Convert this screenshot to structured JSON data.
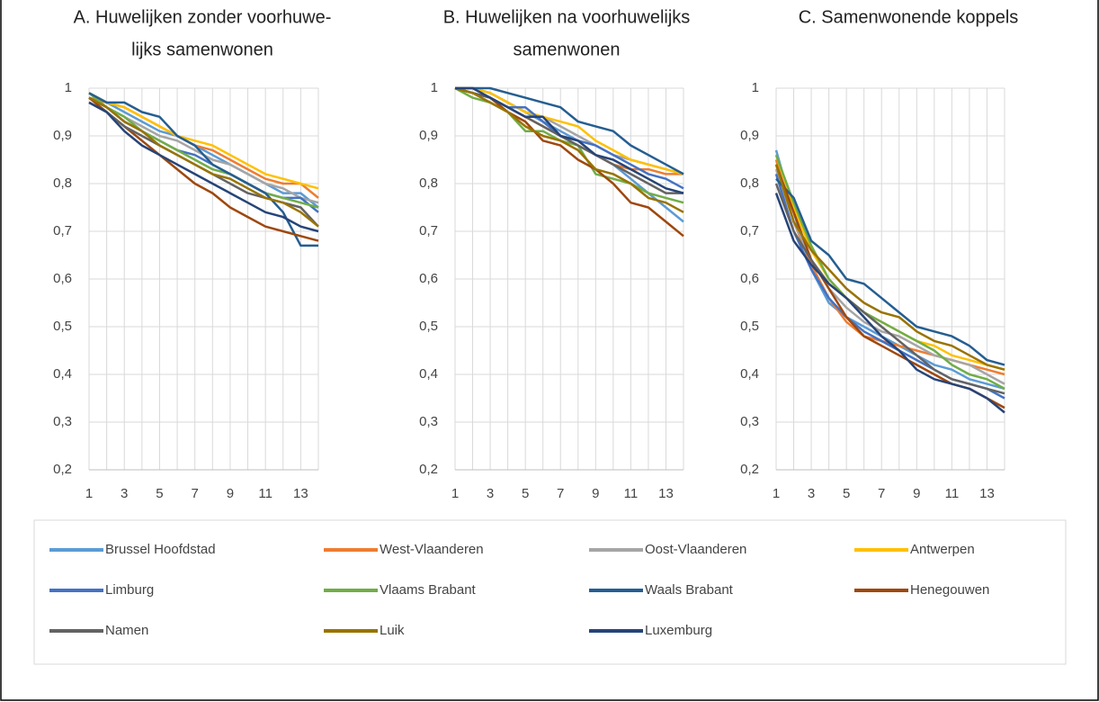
{
  "chart_data": [
    {
      "type": "line",
      "title": [
        "A. Huwelijken zonder voorhuwe-",
        "lijks samenwonen"
      ],
      "x": [
        1,
        2,
        3,
        4,
        5,
        6,
        7,
        8,
        9,
        10,
        11,
        12,
        13,
        14
      ],
      "xlim": [
        1,
        14
      ],
      "xticks": [
        1,
        3,
        5,
        7,
        9,
        11,
        13
      ],
      "ylim": [
        0.2,
        1
      ],
      "yticks": [
        {
          "value": 0.2,
          "label": "0,2"
        },
        {
          "value": 0.3,
          "label": "0,3"
        },
        {
          "value": 0.4,
          "label": "0,4"
        },
        {
          "value": 0.5,
          "label": "0,5"
        },
        {
          "value": 0.6,
          "label": "0,6"
        },
        {
          "value": 0.7,
          "label": "0,7"
        },
        {
          "value": 0.8,
          "label": "0,8"
        },
        {
          "value": 0.9,
          "label": "0,9"
        },
        1
      ],
      "grid": true,
      "series": [
        {
          "name": "Brussel Hoofdstad",
          "color": "#5b9bd5",
          "values": [
            0.99,
            0.97,
            0.95,
            0.93,
            0.91,
            0.9,
            0.88,
            0.86,
            0.84,
            0.82,
            0.8,
            0.78,
            0.78,
            0.75
          ]
        },
        {
          "name": "West-Vlaanderen",
          "color": "#ed7d31",
          "values": [
            0.98,
            0.97,
            0.96,
            0.94,
            0.92,
            0.9,
            0.88,
            0.87,
            0.85,
            0.83,
            0.81,
            0.8,
            0.8,
            0.77
          ]
        },
        {
          "name": "Oost-Vlaanderen",
          "color": "#a5a5a5",
          "values": [
            0.98,
            0.96,
            0.94,
            0.92,
            0.9,
            0.89,
            0.87,
            0.85,
            0.84,
            0.82,
            0.8,
            0.79,
            0.77,
            0.76
          ]
        },
        {
          "name": "Antwerpen",
          "color": "#ffc000",
          "values": [
            0.99,
            0.97,
            0.96,
            0.94,
            0.92,
            0.9,
            0.89,
            0.88,
            0.86,
            0.84,
            0.82,
            0.81,
            0.8,
            0.79
          ]
        },
        {
          "name": "Limburg",
          "color": "#4472c4",
          "values": [
            0.98,
            0.96,
            0.93,
            0.91,
            0.89,
            0.87,
            0.86,
            0.84,
            0.82,
            0.8,
            0.78,
            0.77,
            0.77,
            0.74
          ]
        },
        {
          "name": "Vlaams Brabant",
          "color": "#70ad47",
          "values": [
            0.99,
            0.96,
            0.94,
            0.91,
            0.89,
            0.87,
            0.85,
            0.83,
            0.82,
            0.8,
            0.78,
            0.77,
            0.76,
            0.75
          ]
        },
        {
          "name": "Waals Brabant",
          "color": "#255e91",
          "values": [
            0.99,
            0.97,
            0.97,
            0.95,
            0.94,
            0.9,
            0.88,
            0.84,
            0.82,
            0.8,
            0.78,
            0.74,
            0.67,
            0.67
          ]
        },
        {
          "name": "Henegouwen",
          "color": "#9e480e",
          "values": [
            0.98,
            0.95,
            0.92,
            0.89,
            0.86,
            0.83,
            0.8,
            0.78,
            0.75,
            0.73,
            0.71,
            0.7,
            0.69,
            0.68
          ]
        },
        {
          "name": "Namen",
          "color": "#636363",
          "values": [
            0.97,
            0.95,
            0.92,
            0.9,
            0.88,
            0.86,
            0.84,
            0.82,
            0.8,
            0.78,
            0.77,
            0.76,
            0.75,
            0.71
          ]
        },
        {
          "name": "Luik",
          "color": "#997300",
          "values": [
            0.98,
            0.96,
            0.93,
            0.91,
            0.88,
            0.86,
            0.84,
            0.82,
            0.81,
            0.79,
            0.77,
            0.76,
            0.74,
            0.71
          ]
        },
        {
          "name": "Luxemburg",
          "color": "#264478",
          "values": [
            0.97,
            0.95,
            0.91,
            0.88,
            0.86,
            0.84,
            0.82,
            0.8,
            0.78,
            0.76,
            0.74,
            0.73,
            0.71,
            0.7
          ]
        }
      ]
    },
    {
      "type": "line",
      "title": [
        "B. Huwelijken na voorhuwelijks",
        "samenwonen"
      ],
      "x": [
        1,
        2,
        3,
        4,
        5,
        6,
        7,
        8,
        9,
        10,
        11,
        12,
        13,
        14
      ],
      "xlim": [
        1,
        14
      ],
      "xticks": [
        1,
        3,
        5,
        7,
        9,
        11,
        13
      ],
      "ylim": [
        0.2,
        1
      ],
      "yticks": [
        {
          "value": 0.2,
          "label": "0,2"
        },
        {
          "value": 0.3,
          "label": "0,3"
        },
        {
          "value": 0.4,
          "label": "0,4"
        },
        {
          "value": 0.5,
          "label": "0,5"
        },
        {
          "value": 0.6,
          "label": "0,6"
        },
        {
          "value": 0.7,
          "label": "0,7"
        },
        {
          "value": 0.8,
          "label": "0,8"
        },
        {
          "value": 0.9,
          "label": "0,9"
        },
        1
      ],
      "grid": true,
      "series": [
        {
          "name": "Brussel Hoofdstad",
          "color": "#5b9bd5",
          "values": [
            1,
            1,
            0.99,
            0.97,
            0.95,
            0.93,
            0.91,
            0.89,
            0.86,
            0.84,
            0.81,
            0.78,
            0.75,
            0.72
          ]
        },
        {
          "name": "West-Vlaanderen",
          "color": "#ed7d31",
          "values": [
            1,
            0.99,
            0.98,
            0.96,
            0.94,
            0.92,
            0.9,
            0.88,
            0.86,
            0.84,
            0.83,
            0.83,
            0.82,
            0.82
          ]
        },
        {
          "name": "Oost-Vlaanderen",
          "color": "#a5a5a5",
          "values": [
            1,
            1,
            0.99,
            0.97,
            0.95,
            0.94,
            0.92,
            0.9,
            0.88,
            0.86,
            0.85,
            0.84,
            0.83,
            0.82
          ]
        },
        {
          "name": "Antwerpen",
          "color": "#ffc000",
          "values": [
            1,
            1,
            0.99,
            0.97,
            0.95,
            0.94,
            0.93,
            0.92,
            0.89,
            0.87,
            0.85,
            0.84,
            0.83,
            0.82
          ]
        },
        {
          "name": "Limburg",
          "color": "#4472c4",
          "values": [
            1,
            0.99,
            0.98,
            0.96,
            0.96,
            0.93,
            0.9,
            0.89,
            0.88,
            0.86,
            0.84,
            0.82,
            0.81,
            0.79
          ]
        },
        {
          "name": "Vlaams Brabant",
          "color": "#70ad47",
          "values": [
            1,
            0.98,
            0.97,
            0.95,
            0.91,
            0.91,
            0.89,
            0.88,
            0.82,
            0.81,
            0.8,
            0.78,
            0.77,
            0.76
          ]
        },
        {
          "name": "Waals Brabant",
          "color": "#255e91",
          "values": [
            1,
            1,
            1,
            0.99,
            0.98,
            0.97,
            0.96,
            0.93,
            0.92,
            0.91,
            0.88,
            0.86,
            0.84,
            0.82
          ]
        },
        {
          "name": "Henegouwen",
          "color": "#9e480e",
          "values": [
            1,
            0.99,
            0.98,
            0.95,
            0.93,
            0.89,
            0.88,
            0.85,
            0.83,
            0.8,
            0.76,
            0.75,
            0.72,
            0.69
          ]
        },
        {
          "name": "Namen",
          "color": "#636363",
          "values": [
            1,
            0.99,
            0.98,
            0.96,
            0.94,
            0.92,
            0.9,
            0.88,
            0.86,
            0.84,
            0.82,
            0.8,
            0.78,
            0.78
          ]
        },
        {
          "name": "Luik",
          "color": "#997300",
          "values": [
            1,
            0.99,
            0.97,
            0.95,
            0.92,
            0.9,
            0.89,
            0.87,
            0.83,
            0.82,
            0.8,
            0.77,
            0.76,
            0.74
          ]
        },
        {
          "name": "Luxemburg",
          "color": "#264478",
          "values": [
            1,
            1,
            0.98,
            0.96,
            0.94,
            0.94,
            0.9,
            0.89,
            0.86,
            0.85,
            0.83,
            0.81,
            0.79,
            0.78
          ]
        }
      ]
    },
    {
      "type": "line",
      "title": [
        "C. Samenwonende koppels"
      ],
      "x": [
        1,
        2,
        3,
        4,
        5,
        6,
        7,
        8,
        9,
        10,
        11,
        12,
        13,
        14
      ],
      "xlim": [
        1,
        14
      ],
      "xticks": [
        1,
        3,
        5,
        7,
        9,
        11,
        13
      ],
      "ylim": [
        0.2,
        1
      ],
      "yticks": [
        {
          "value": 0.2,
          "label": "0,2"
        },
        {
          "value": 0.3,
          "label": "0,3"
        },
        {
          "value": 0.4,
          "label": "0,4"
        },
        {
          "value": 0.5,
          "label": "0,5"
        },
        {
          "value": 0.6,
          "label": "0,6"
        },
        {
          "value": 0.7,
          "label": "0,7"
        },
        {
          "value": 0.8,
          "label": "0,8"
        },
        {
          "value": 0.9,
          "label": "0,9"
        },
        1
      ],
      "grid": true,
      "series": [
        {
          "name": "Brussel Hoofdstad",
          "color": "#5b9bd5",
          "values": [
            0.87,
            0.74,
            0.62,
            0.55,
            0.52,
            0.5,
            0.48,
            0.46,
            0.44,
            0.42,
            0.41,
            0.39,
            0.38,
            0.37
          ]
        },
        {
          "name": "West-Vlaanderen",
          "color": "#ed7d31",
          "values": [
            0.85,
            0.72,
            0.63,
            0.56,
            0.51,
            0.48,
            0.47,
            0.46,
            0.45,
            0.44,
            0.43,
            0.42,
            0.41,
            0.4
          ]
        },
        {
          "name": "Oost-Vlaanderen",
          "color": "#a5a5a5",
          "values": [
            0.83,
            0.72,
            0.64,
            0.58,
            0.54,
            0.51,
            0.49,
            0.48,
            0.46,
            0.44,
            0.43,
            0.42,
            0.4,
            0.38
          ]
        },
        {
          "name": "Antwerpen",
          "color": "#ffc000",
          "values": [
            0.86,
            0.75,
            0.66,
            0.6,
            0.56,
            0.53,
            0.51,
            0.49,
            0.47,
            0.46,
            0.44,
            0.43,
            0.42,
            0.41
          ]
        },
        {
          "name": "Limburg",
          "color": "#4472c4",
          "values": [
            0.82,
            0.7,
            0.62,
            0.56,
            0.52,
            0.49,
            0.47,
            0.45,
            0.43,
            0.41,
            0.39,
            0.38,
            0.37,
            0.35
          ]
        },
        {
          "name": "Vlaams Brabant",
          "color": "#70ad47",
          "values": [
            0.86,
            0.76,
            0.67,
            0.6,
            0.56,
            0.53,
            0.51,
            0.49,
            0.47,
            0.45,
            0.42,
            0.4,
            0.39,
            0.37
          ]
        },
        {
          "name": "Waals Brabant",
          "color": "#255e91",
          "values": [
            0.81,
            0.77,
            0.68,
            0.65,
            0.6,
            0.59,
            0.56,
            0.53,
            0.5,
            0.49,
            0.48,
            0.46,
            0.43,
            0.42
          ]
        },
        {
          "name": "Henegouwen",
          "color": "#9e480e",
          "values": [
            0.84,
            0.74,
            0.64,
            0.58,
            0.52,
            0.48,
            0.46,
            0.44,
            0.42,
            0.4,
            0.38,
            0.37,
            0.35,
            0.33
          ]
        },
        {
          "name": "Namen",
          "color": "#636363",
          "values": [
            0.8,
            0.7,
            0.64,
            0.59,
            0.56,
            0.53,
            0.5,
            0.47,
            0.44,
            0.41,
            0.39,
            0.38,
            0.37,
            0.36
          ]
        },
        {
          "name": "Luik",
          "color": "#997300",
          "values": [
            0.84,
            0.72,
            0.66,
            0.62,
            0.58,
            0.55,
            0.53,
            0.52,
            0.49,
            0.47,
            0.46,
            0.44,
            0.42,
            0.41
          ]
        },
        {
          "name": "Luxemburg",
          "color": "#264478",
          "values": [
            0.78,
            0.68,
            0.63,
            0.59,
            0.56,
            0.52,
            0.48,
            0.45,
            0.41,
            0.39,
            0.38,
            0.37,
            0.35,
            0.32
          ]
        }
      ]
    }
  ]
}
